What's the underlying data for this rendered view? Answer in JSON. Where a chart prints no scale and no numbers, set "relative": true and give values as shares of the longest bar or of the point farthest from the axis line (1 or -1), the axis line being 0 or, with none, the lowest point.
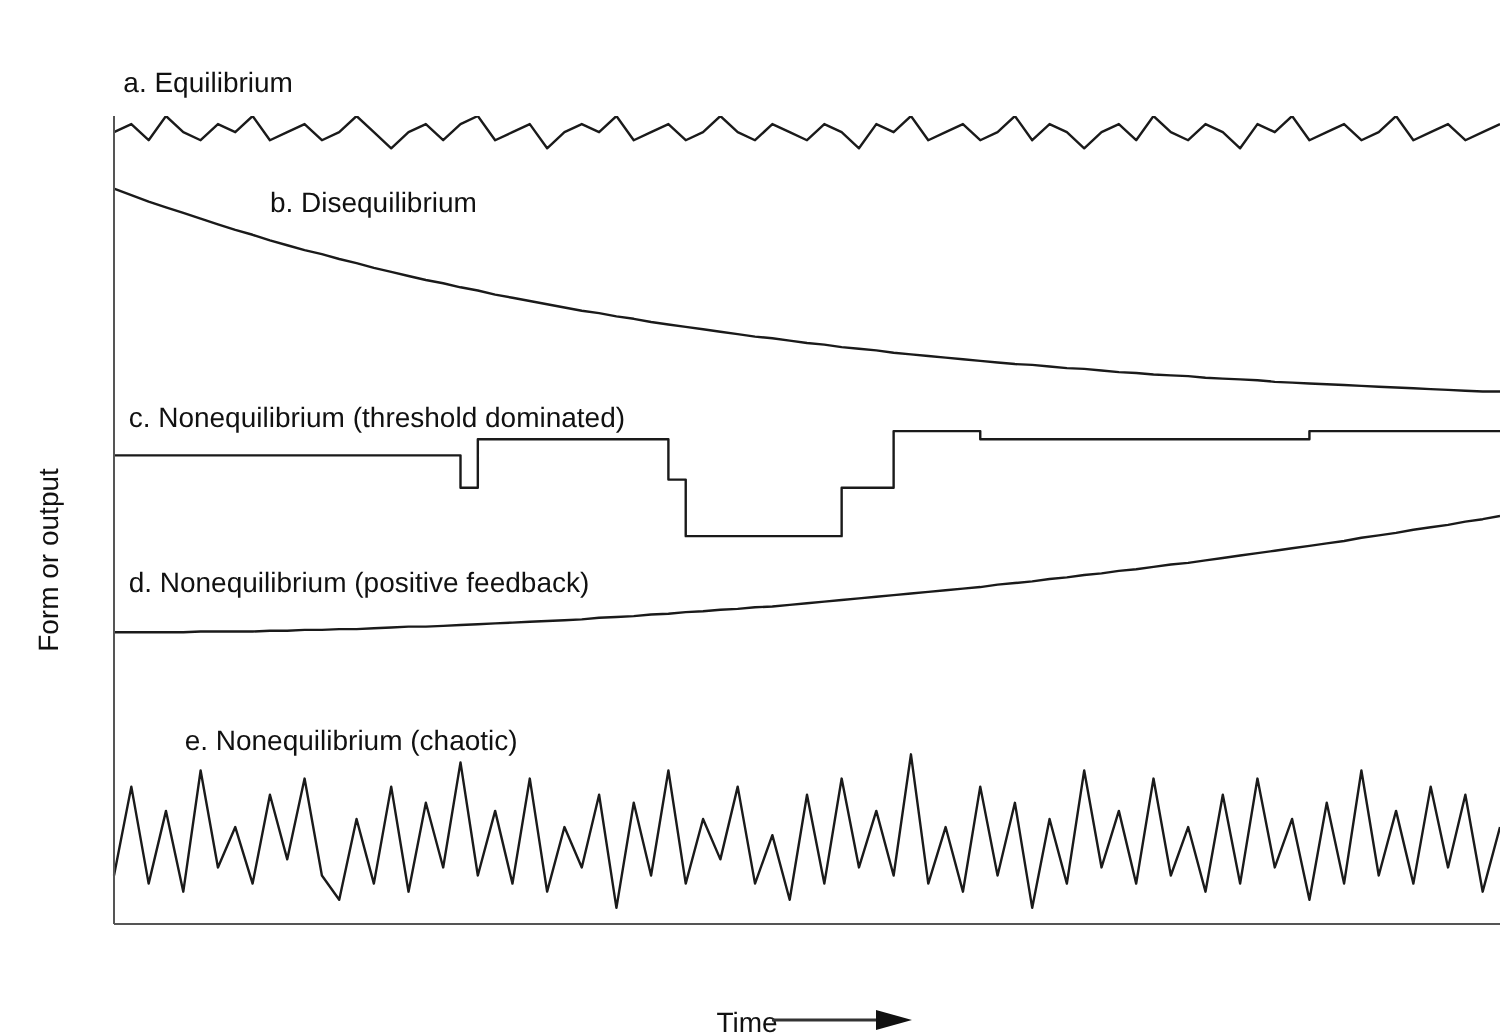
{
  "chart_data": {
    "type": "line",
    "relative": true,
    "tick_labels": false,
    "xlabel": "Time",
    "ylabel": "Form or output",
    "categories": [
      null,
      null,
      null,
      null,
      null,
      null,
      null,
      null,
      null,
      null,
      null,
      null,
      null,
      null,
      null,
      null,
      null,
      null,
      null,
      null,
      null,
      null,
      null,
      null,
      null,
      null,
      null,
      null,
      null,
      null,
      null,
      null,
      null,
      null,
      null,
      null,
      null,
      null,
      null,
      null,
      null,
      null,
      null,
      null,
      null,
      null,
      null,
      null,
      null,
      null,
      null,
      null,
      null,
      null,
      null,
      null,
      null,
      null,
      null,
      null,
      null,
      null,
      null,
      null,
      null,
      null,
      null,
      null,
      null,
      null,
      null,
      null,
      null,
      null,
      null,
      null,
      null,
      null,
      null,
      null,
      null
    ],
    "series": [
      {
        "name": "a. Equilibrium",
        "color": "#1a1a1a",
        "values": [
          0.98,
          0.99,
          0.97,
          1.0,
          0.98,
          0.97,
          0.99,
          0.98,
          1.0,
          0.97,
          0.98,
          0.99,
          0.97,
          0.98,
          1.0,
          0.98,
          0.96,
          0.98,
          0.99,
          0.97,
          0.99,
          1.0,
          0.97,
          0.98,
          0.99,
          0.96,
          0.98,
          0.99,
          0.98,
          1.0,
          0.97,
          0.98,
          0.99,
          0.97,
          0.98,
          1.0,
          0.98,
          0.97,
          0.99,
          0.98,
          0.97,
          0.99,
          0.98,
          0.96,
          0.99,
          0.98,
          1.0,
          0.97,
          0.98,
          0.99,
          0.97,
          0.98,
          1.0,
          0.97,
          0.99,
          0.98,
          0.96,
          0.98,
          0.99,
          0.97,
          1.0,
          0.98,
          0.97,
          0.99,
          0.98,
          0.96,
          0.99,
          0.98,
          1.0,
          0.97,
          0.98,
          0.99,
          0.97,
          0.98,
          1.0,
          0.97,
          0.98,
          0.99,
          0.97,
          0.98,
          0.99
        ]
      },
      {
        "name": "b. Disequilibrium",
        "color": "#1a1a1a",
        "values": [
          0.91,
          0.902,
          0.894,
          0.887,
          0.88,
          0.873,
          0.866,
          0.859,
          0.853,
          0.846,
          0.84,
          0.834,
          0.829,
          0.823,
          0.818,
          0.812,
          0.807,
          0.802,
          0.797,
          0.793,
          0.788,
          0.784,
          0.779,
          0.775,
          0.771,
          0.767,
          0.763,
          0.759,
          0.756,
          0.752,
          0.749,
          0.745,
          0.742,
          0.739,
          0.736,
          0.733,
          0.73,
          0.727,
          0.725,
          0.722,
          0.719,
          0.717,
          0.714,
          0.712,
          0.71,
          0.707,
          0.705,
          0.703,
          0.701,
          0.699,
          0.697,
          0.695,
          0.693,
          0.692,
          0.69,
          0.688,
          0.687,
          0.685,
          0.683,
          0.682,
          0.68,
          0.679,
          0.678,
          0.676,
          0.675,
          0.674,
          0.673,
          0.671,
          0.67,
          0.669,
          0.668,
          0.667,
          0.666,
          0.665,
          0.664,
          0.663,
          0.662,
          0.661,
          0.66,
          0.659,
          0.659
        ]
      },
      {
        "name": "c. Nonequilibrium (threshold dominated)",
        "type": "step",
        "color": "#1a1a1a",
        "values": [
          0.58,
          0.58,
          0.58,
          0.58,
          0.58,
          0.58,
          0.58,
          0.58,
          0.58,
          0.58,
          0.58,
          0.58,
          0.58,
          0.58,
          0.58,
          0.58,
          0.58,
          0.58,
          0.58,
          0.58,
          0.54,
          0.6,
          0.6,
          0.6,
          0.6,
          0.6,
          0.6,
          0.6,
          0.6,
          0.6,
          0.6,
          0.6,
          0.55,
          0.48,
          0.48,
          0.48,
          0.48,
          0.48,
          0.48,
          0.48,
          0.48,
          0.48,
          0.54,
          0.54,
          0.54,
          0.61,
          0.61,
          0.61,
          0.61,
          0.61,
          0.6,
          0.6,
          0.6,
          0.6,
          0.6,
          0.6,
          0.6,
          0.6,
          0.6,
          0.6,
          0.6,
          0.6,
          0.6,
          0.6,
          0.6,
          0.6,
          0.6,
          0.6,
          0.6,
          0.61,
          0.61,
          0.61,
          0.61,
          0.61,
          0.61,
          0.61,
          0.61,
          0.61,
          0.61,
          0.61,
          0.61
        ]
      },
      {
        "name": "d. Nonequilibrium (positive feedback)",
        "color": "#1a1a1a",
        "values": [
          0.361,
          0.361,
          0.361,
          0.361,
          0.361,
          0.362,
          0.362,
          0.362,
          0.362,
          0.363,
          0.363,
          0.364,
          0.364,
          0.365,
          0.365,
          0.366,
          0.367,
          0.368,
          0.368,
          0.369,
          0.37,
          0.371,
          0.372,
          0.373,
          0.374,
          0.375,
          0.376,
          0.377,
          0.379,
          0.38,
          0.381,
          0.383,
          0.384,
          0.386,
          0.387,
          0.389,
          0.39,
          0.392,
          0.393,
          0.395,
          0.397,
          0.399,
          0.401,
          0.403,
          0.405,
          0.407,
          0.409,
          0.411,
          0.413,
          0.415,
          0.417,
          0.42,
          0.422,
          0.424,
          0.427,
          0.429,
          0.432,
          0.434,
          0.437,
          0.439,
          0.442,
          0.445,
          0.447,
          0.45,
          0.453,
          0.456,
          0.459,
          0.462,
          0.465,
          0.468,
          0.471,
          0.474,
          0.478,
          0.481,
          0.484,
          0.488,
          0.491,
          0.494,
          0.498,
          0.501,
          0.505
        ]
      },
      {
        "name": "e. Nonequilibrium (chaotic)",
        "color": "#1a1a1a",
        "values": [
          0.06,
          0.17,
          0.05,
          0.14,
          0.04,
          0.19,
          0.07,
          0.12,
          0.05,
          0.16,
          0.08,
          0.18,
          0.06,
          0.03,
          0.13,
          0.05,
          0.17,
          0.04,
          0.15,
          0.07,
          0.2,
          0.06,
          0.14,
          0.05,
          0.18,
          0.04,
          0.12,
          0.07,
          0.16,
          0.02,
          0.15,
          0.06,
          0.19,
          0.05,
          0.13,
          0.08,
          0.17,
          0.05,
          0.11,
          0.03,
          0.16,
          0.05,
          0.18,
          0.07,
          0.14,
          0.06,
          0.21,
          0.05,
          0.12,
          0.04,
          0.17,
          0.06,
          0.15,
          0.02,
          0.13,
          0.05,
          0.19,
          0.07,
          0.14,
          0.05,
          0.18,
          0.06,
          0.12,
          0.04,
          0.16,
          0.05,
          0.18,
          0.07,
          0.13,
          0.03,
          0.15,
          0.05,
          0.19,
          0.06,
          0.14,
          0.05,
          0.17,
          0.07,
          0.16,
          0.04,
          0.12
        ]
      }
    ]
  }
}
